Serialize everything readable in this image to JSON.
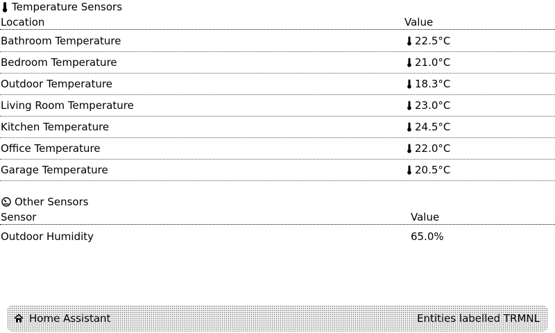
{
  "temperature_section": {
    "title": "Temperature Sensors",
    "icon": "thermometer-icon",
    "headers": {
      "location": "Location",
      "value": "Value"
    },
    "rows": [
      {
        "location": "Bathroom Temperature",
        "value": "22.5°C"
      },
      {
        "location": "Bedroom Temperature",
        "value": "21.0°C"
      },
      {
        "location": "Outdoor Temperature",
        "value": "18.3°C"
      },
      {
        "location": "Living Room Temperature",
        "value": "23.0°C"
      },
      {
        "location": "Kitchen Temperature",
        "value": "24.5°C"
      },
      {
        "location": "Office Temperature",
        "value": "22.0°C"
      },
      {
        "location": "Garage Temperature",
        "value": "20.5°C"
      }
    ]
  },
  "other_section": {
    "title": "Other Sensors",
    "icon": "gauge-icon",
    "headers": {
      "sensor": "Sensor",
      "value": "Value"
    },
    "rows": [
      {
        "sensor": "Outdoor Humidity",
        "value": "65.0%"
      }
    ]
  },
  "footer": {
    "app_name": "Home Assistant",
    "icon": "home-icon",
    "label": "Entities labelled TRMNL"
  }
}
